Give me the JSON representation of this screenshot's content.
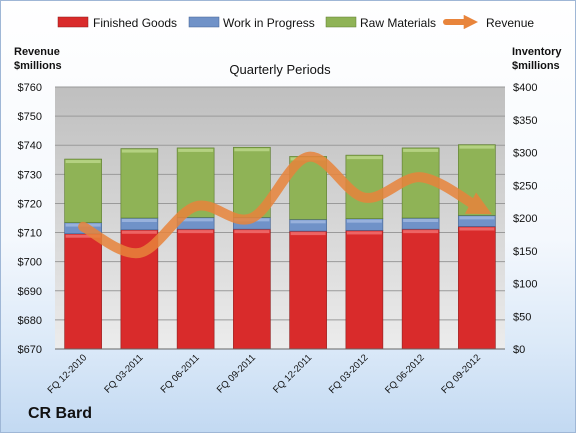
{
  "company": "CR Bard",
  "chart_data": {
    "type": "bar",
    "stacked": true,
    "title": "Quarterly Periods",
    "ylabel_left": [
      "Revenue",
      "$millions"
    ],
    "ylabel_right": [
      "Inventory",
      "$millions"
    ],
    "categories": [
      "FQ 12-2010",
      "FQ 03-2011",
      "FQ 06-2011",
      "FQ 09-2011",
      "FQ 12-2011",
      "FQ 03-2012",
      "FQ 06-2012",
      "FQ 09-2012"
    ],
    "left_axis": {
      "min": 670,
      "max": 760,
      "step": 10,
      "prefix": "$"
    },
    "right_axis": {
      "min": 0,
      "max": 400,
      "step": 50,
      "prefix": "$"
    },
    "series": [
      {
        "name": "Finished Goods",
        "axis": "right",
        "color": "#d92b2b",
        "values": [
          176,
          182,
          183,
          183,
          180,
          181,
          183,
          187
        ]
      },
      {
        "name": "Work in Progress",
        "axis": "right",
        "color": "#7092c8",
        "values": [
          17,
          18,
          18,
          18,
          18,
          18,
          17,
          17
        ]
      },
      {
        "name": "Raw Materials",
        "axis": "right",
        "color": "#8fb356",
        "values": [
          97,
          106,
          106,
          107,
          96,
          97,
          107,
          108
        ]
      },
      {
        "name": "Revenue",
        "axis": "left",
        "color": "#e8843b",
        "type": "line",
        "values": [
          712,
          703,
          719,
          715,
          736,
          722,
          729,
          719
        ]
      }
    ],
    "legend_position": "top",
    "grid": true
  }
}
